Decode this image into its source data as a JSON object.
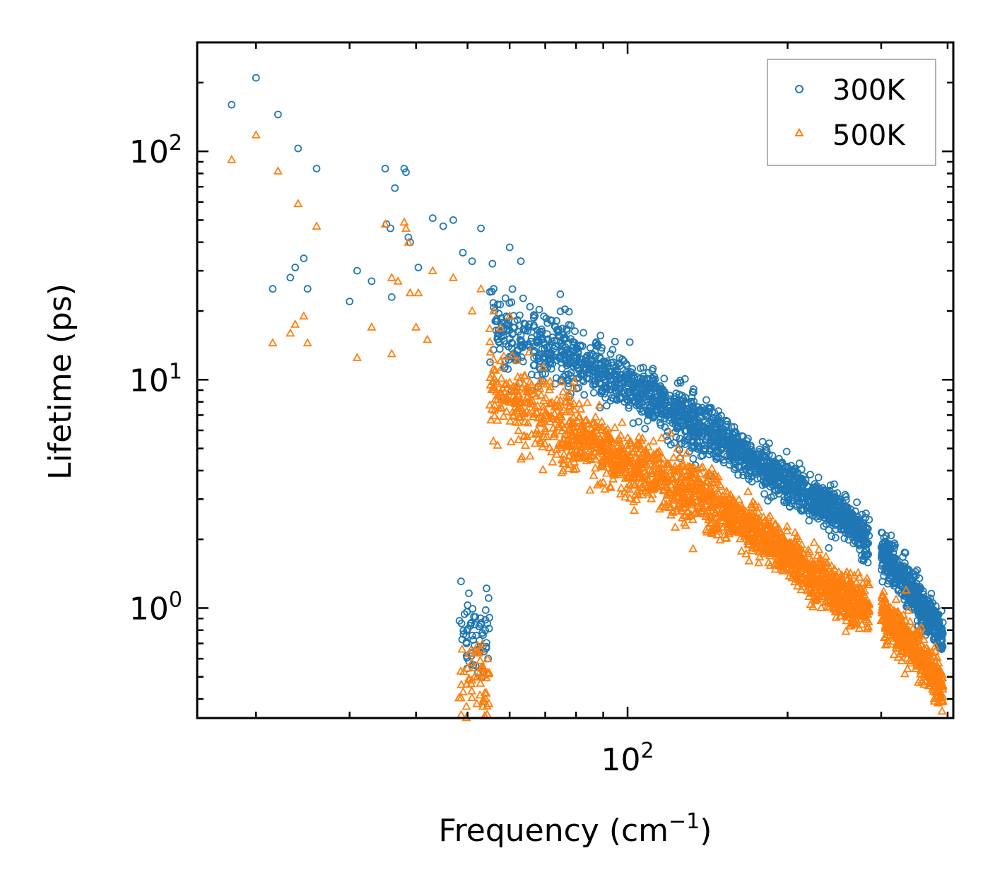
{
  "chart_data": {
    "type": "scatter",
    "title": "",
    "xscale": "log",
    "yscale": "log",
    "xlim": [
      15.5,
      410
    ],
    "ylim": [
      0.33,
      300
    ],
    "xlabel_text": "Frequency (cm",
    "xlabel_sup": "−1",
    "xlabel_close": ")",
    "ylabel": "Lifetime (ps)",
    "x_major_ticks": [
      {
        "value": 100,
        "base": "10",
        "exp": "2"
      }
    ],
    "y_major_ticks": [
      {
        "value": 1,
        "base": "10",
        "exp": "0"
      },
      {
        "value": 10,
        "base": "10",
        "exp": "1"
      },
      {
        "value": 100,
        "base": "10",
        "exp": "2"
      }
    ],
    "legend_position": "top-right",
    "series": [
      {
        "name": "300K",
        "marker": "circle",
        "color": "#1f77b4",
        "anchor_points": [
          [
            18,
            160
          ],
          [
            20,
            210
          ],
          [
            22,
            145
          ],
          [
            24,
            103
          ],
          [
            26,
            84
          ],
          [
            21.5,
            25
          ],
          [
            23.2,
            28
          ],
          [
            23.7,
            31
          ],
          [
            24.6,
            34
          ],
          [
            25,
            25
          ],
          [
            35,
            84
          ],
          [
            36.5,
            69
          ],
          [
            35.2,
            48
          ],
          [
            35.8,
            46
          ],
          [
            38,
            84
          ],
          [
            38.3,
            81
          ],
          [
            38.7,
            42
          ],
          [
            39,
            40
          ],
          [
            40.4,
            31
          ],
          [
            43,
            51
          ],
          [
            45,
            47
          ],
          [
            47,
            50
          ],
          [
            49,
            36
          ],
          [
            51,
            33
          ],
          [
            53,
            46
          ],
          [
            56,
            25
          ],
          [
            60,
            38
          ],
          [
            63,
            33
          ],
          [
            31,
            30
          ],
          [
            30,
            22
          ],
          [
            33,
            27
          ],
          [
            36,
            23
          ]
        ],
        "trend": [
          {
            "x": 55,
            "y": 17
          },
          {
            "x": 70,
            "y": 14
          },
          {
            "x": 100,
            "y": 9.5
          },
          {
            "x": 150,
            "y": 5.5
          },
          {
            "x": 200,
            "y": 3.5
          },
          {
            "x": 250,
            "y": 2.6
          },
          {
            "x": 300,
            "y": 1.8
          },
          {
            "x": 350,
            "y": 1.1
          },
          {
            "x": 390,
            "y": 0.76
          }
        ],
        "scatter_band_decades": 0.35
      },
      {
        "name": "500K",
        "marker": "triangle",
        "color": "#ff7f0e",
        "anchor_points": [
          [
            18,
            92
          ],
          [
            20,
            118
          ],
          [
            22,
            82
          ],
          [
            24,
            59
          ],
          [
            26,
            47
          ],
          [
            21.5,
            14.5
          ],
          [
            23.2,
            16
          ],
          [
            23.7,
            17.5
          ],
          [
            24.6,
            19
          ],
          [
            25,
            14.5
          ],
          [
            35,
            48
          ],
          [
            38,
            49
          ],
          [
            38.3,
            46
          ],
          [
            38.7,
            40
          ],
          [
            36,
            28
          ],
          [
            37,
            27
          ],
          [
            39,
            24
          ],
          [
            40.4,
            24
          ],
          [
            42,
            15
          ],
          [
            43,
            30
          ],
          [
            47,
            28
          ],
          [
            51,
            20
          ],
          [
            53,
            25
          ],
          [
            56,
            20
          ],
          [
            60,
            19
          ],
          [
            31,
            12.5
          ],
          [
            33,
            17
          ],
          [
            36,
            13
          ],
          [
            40,
            17
          ]
        ],
        "trend": [
          {
            "x": 55,
            "y": 9
          },
          {
            "x": 70,
            "y": 7
          },
          {
            "x": 100,
            "y": 4.3
          },
          {
            "x": 150,
            "y": 2.7
          },
          {
            "x": 200,
            "y": 1.7
          },
          {
            "x": 250,
            "y": 1.15
          },
          {
            "x": 300,
            "y": 0.95
          },
          {
            "x": 350,
            "y": 0.65
          },
          {
            "x": 390,
            "y": 0.45
          }
        ],
        "scatter_band_decades": 0.4
      }
    ]
  }
}
